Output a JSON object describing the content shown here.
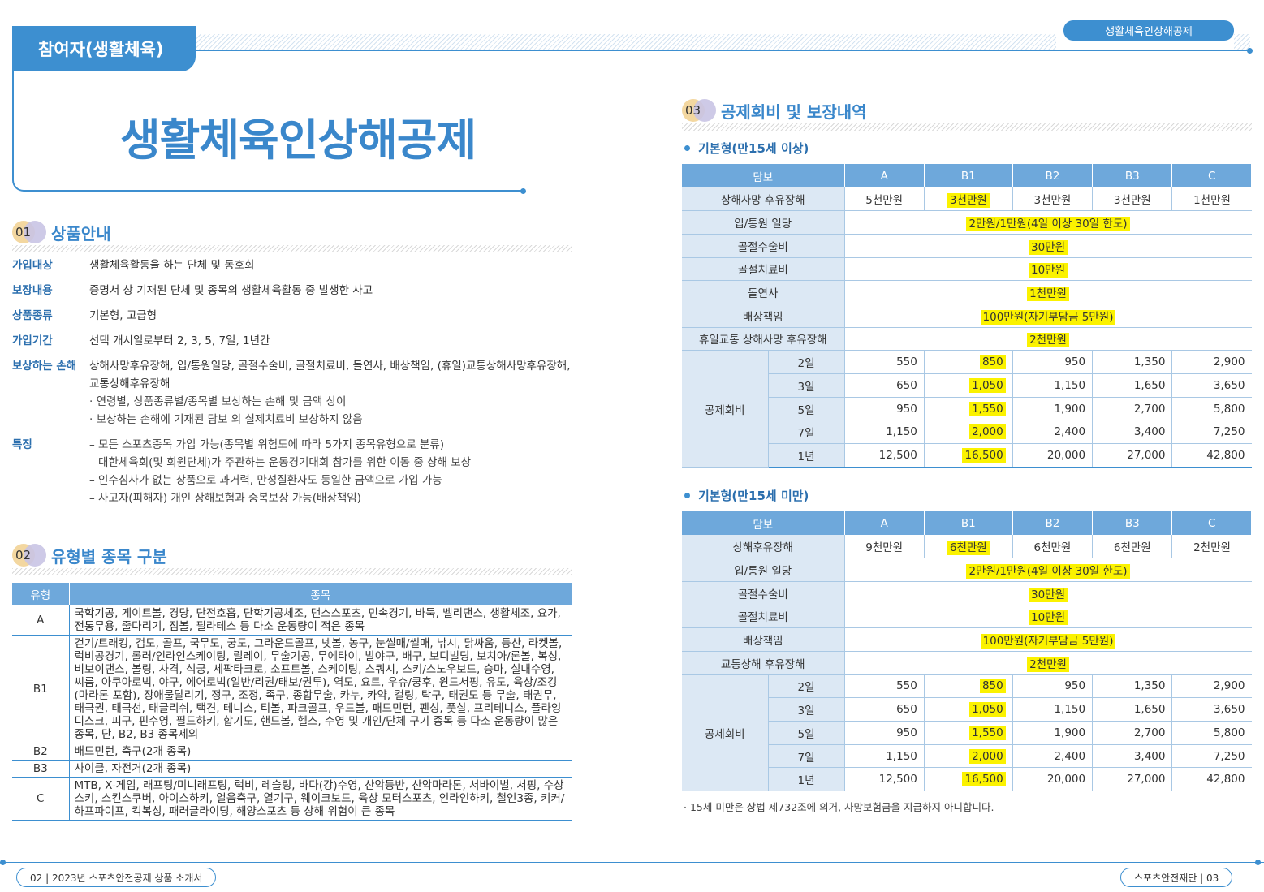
{
  "header": {
    "category_tab": "참여자(생활체육)",
    "top_right_tab": "생활체육인상해공제",
    "main_title": "생활체육인상해공제"
  },
  "sections": {
    "s01": {
      "num": "01",
      "title": "상품안내"
    },
    "s02": {
      "num": "02",
      "title": "유형별 종목 구분"
    },
    "s03": {
      "num": "03",
      "title": "공제회비 및 보장내역"
    }
  },
  "product_info": [
    {
      "label": "가입대상",
      "value": "생활체육활동을 하는 단체 및 동호회"
    },
    {
      "label": "보장내용",
      "value": "증명서 상 기재된 단체 및 종목의 생활체육활동 중 발생한 사고"
    },
    {
      "label": "상품종류",
      "value": "기본형, 고급형"
    },
    {
      "label": "가입기간",
      "value": "선택 개시일로부터 2, 3, 5, 7일, 1년간"
    },
    {
      "label": "보상하는 손해",
      "value": "상해사망후유장해, 입/통원일당, 골절수술비, 골절치료비, 돌연사, 배상책임, (휴일)교통상해사망후유장해, 교통상해후유장해",
      "notes": [
        "· 연령별, 상품종류별/종목별 보상하는 손해 및 금액 상이",
        "· 보상하는 손해에 기재된 담보 외 실제치료비 보상하지 않음"
      ]
    },
    {
      "label": "특징",
      "notes": [
        "– 모든 스포츠종목 가입 가능(종목별 위험도에 따라 5가지 종목유형으로 분류)",
        "– 대한체육회(및 회원단체)가 주관하는 운동경기대회 참가를 위한 이동 중 상해 보상",
        "– 인수심사가 없는 상품으로 과거력, 만성질환자도 동일한 금액으로 가입 가능",
        "– 사고자(피해자) 개인 상해보험과 중복보상 가능(배상책임)"
      ]
    }
  ],
  "type_table": {
    "headers": [
      "유형",
      "종목"
    ],
    "rows": [
      {
        "type": "A",
        "items": "국학기공, 게이트볼, 경당, 단전호흡, 단학기공체조, 댄스스포츠, 민속경기, 바둑, 벨리댄스, 생활체조, 요가, 전통무용, 줄다리기, 짐볼, 필라테스 등 다소 운동량이 적은 종목"
      },
      {
        "type": "B1",
        "items": "걷기/트래킹, 검도, 골프, 국무도, 궁도, 그라운드골프, 넷볼, 농구, 눈썰매/썰매, 낚시, 닭싸움, 등산, 라켓볼, 럭비공경기, 롤러/인라인스케이팅, 릴레이, 무술기공, 무에타이, 발야구, 배구, 보디빌딩, 보치아/론볼, 복싱, 비보이댄스, 볼링, 사격, 석궁, 세팍타크로, 소프트볼, 스케이팅, 스쿼시, 스키/스노우보드, 승마, 실내수영, 씨름, 아쿠아로빅, 야구, 에어로빅(일반/리권/태보/권투), 역도, 요트, 우슈/쿵후, 윈드서핑, 유도, 육상/조깅(마라톤 포함), 장애물달리기, 정구, 조정, 족구, 종합무술, 카누, 카약, 컬링, 탁구, 태권도 등 무술, 태권무, 태극권, 태극선, 태글리쉬, 택견, 테니스, 티볼, 파크골프, 우드볼, 패드민턴, 펜싱, 풋살, 프리테니스, 플라잉디스크, 피구, 핀수영, 필드하키, 합기도, 핸드볼, 헬스, 수영 및 개인/단체 구기 종목 등 다소 운동량이 많은 종목, 단, B2, B3 종목제외"
      },
      {
        "type": "B2",
        "items": "배드민턴, 축구(2개 종목)"
      },
      {
        "type": "B3",
        "items": "사이클, 자전거(2개 종목)"
      },
      {
        "type": "C",
        "items": "MTB, X-게임, 래프팅/미니래프팅, 럭비, 레슬링, 바다(강)수영, 산악등반, 산악마라톤, 서바이벌, 서핑, 수상스키, 스킨스쿠버, 아이스하키, 얼음축구, 열기구, 웨이크보드, 육상 모터스포츠, 인라인하키, 철인3종, 키커/하프파이프, 킥복싱, 패러글라이딩, 해양스포츠 등 상해 위험이 큰 종목"
      }
    ]
  },
  "coverage_tables": [
    {
      "subtitle": "기본형(만15세 이상)",
      "headers": [
        "담보",
        "A",
        "B1",
        "B2",
        "B3",
        "C"
      ],
      "first_row": {
        "label": "상해사망 후유장해",
        "values": [
          "5천만원",
          "3천만원",
          "3천만원",
          "3천만원",
          "1천만원"
        ]
      },
      "merged_rows": [
        {
          "label": "입/통원 일당",
          "value": "2만원/1만원(4일 이상 30일 한도)"
        },
        {
          "label": "골절수술비",
          "value": "30만원"
        },
        {
          "label": "골절치료비",
          "value": "10만원"
        },
        {
          "label": "돌연사",
          "value": "1천만원"
        },
        {
          "label": "배상책임",
          "value": "100만원(자기부담금 5만원)"
        },
        {
          "label": "휴일교통 상해사망 후유장해",
          "value": "2천만원"
        }
      ],
      "fee_label": "공제회비",
      "fees": [
        {
          "period": "2일",
          "values": [
            "550",
            "850",
            "950",
            "1,350",
            "2,900"
          ]
        },
        {
          "period": "3일",
          "values": [
            "650",
            "1,050",
            "1,150",
            "1,650",
            "3,650"
          ]
        },
        {
          "period": "5일",
          "values": [
            "950",
            "1,550",
            "1,900",
            "2,700",
            "5,800"
          ]
        },
        {
          "period": "7일",
          "values": [
            "1,150",
            "2,000",
            "2,400",
            "3,400",
            "7,250"
          ]
        },
        {
          "period": "1년",
          "values": [
            "12,500",
            "16,500",
            "20,000",
            "27,000",
            "42,800"
          ]
        }
      ]
    },
    {
      "subtitle": "기본형(만15세 미만)",
      "headers": [
        "담보",
        "A",
        "B1",
        "B2",
        "B3",
        "C"
      ],
      "first_row": {
        "label": "상해후유장해",
        "values": [
          "9천만원",
          "6천만원",
          "6천만원",
          "6천만원",
          "2천만원"
        ]
      },
      "merged_rows": [
        {
          "label": "입/통원 일당",
          "value": "2만원/1만원(4일 이상 30일 한도)"
        },
        {
          "label": "골절수술비",
          "value": "30만원"
        },
        {
          "label": "골절치료비",
          "value": "10만원"
        },
        {
          "label": "배상책임",
          "value": "100만원(자기부담금 5만원)"
        },
        {
          "label": "교통상해 후유장해",
          "value": "2천만원"
        }
      ],
      "fee_label": "공제회비",
      "fees": [
        {
          "period": "2일",
          "values": [
            "550",
            "850",
            "950",
            "1,350",
            "2,900"
          ]
        },
        {
          "period": "3일",
          "values": [
            "650",
            "1,050",
            "1,150",
            "1,650",
            "3,650"
          ]
        },
        {
          "period": "5일",
          "values": [
            "950",
            "1,550",
            "1,900",
            "2,700",
            "5,800"
          ]
        },
        {
          "period": "7일",
          "values": [
            "1,150",
            "2,000",
            "2,400",
            "3,400",
            "7,250"
          ]
        },
        {
          "period": "1년",
          "values": [
            "12,500",
            "16,500",
            "20,000",
            "27,000",
            "42,800"
          ]
        }
      ]
    }
  ],
  "note": "· 15세 미만은 상법 제732조에 의거, 사망보험금을 지급하지 아니합니다.",
  "footer": {
    "left": "02 | 2023년 스포츠안전공제 상품 소개서",
    "right": "스포츠안전재단 | 03"
  },
  "colors": {
    "accent": "#3d8fd0",
    "title": "#3a87cb",
    "header_fill": "#6ea8db",
    "label_fill": "#dce8f4",
    "highlight": "#fbf200"
  }
}
